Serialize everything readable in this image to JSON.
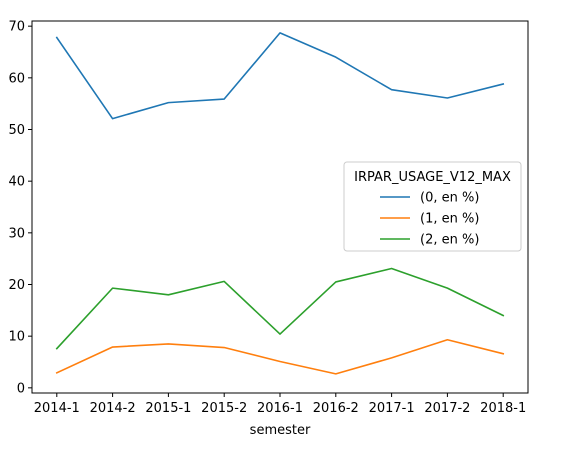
{
  "chart_data": {
    "type": "line",
    "xlabel": "semester",
    "ylabel": "",
    "categories": [
      "2014-1",
      "2014-2",
      "2015-1",
      "2015-2",
      "2016-1",
      "2016-2",
      "2017-1",
      "2017-2",
      "2018-1"
    ],
    "ylim": [
      -1,
      71
    ],
    "yticks": [
      0,
      10,
      20,
      30,
      40,
      50,
      60,
      70
    ],
    "grid": false,
    "legend": {
      "title": "IRPAR_USAGE_V12_MAX",
      "placement": "center-right"
    },
    "series": [
      {
        "name": "(0, en %)",
        "color": "#1f77b4",
        "values": [
          67.8,
          52.1,
          55.2,
          55.9,
          68.7,
          64.0,
          57.7,
          56.1,
          58.8
        ]
      },
      {
        "name": "(1, en %)",
        "color": "#ff7f0e",
        "values": [
          2.9,
          7.9,
          8.5,
          7.8,
          5.1,
          2.7,
          5.8,
          9.3,
          6.6
        ]
      },
      {
        "name": "(2, en %)",
        "color": "#2ca02c",
        "values": [
          7.6,
          19.3,
          18.0,
          20.6,
          10.4,
          20.5,
          23.1,
          19.3,
          14.0
        ]
      }
    ]
  }
}
